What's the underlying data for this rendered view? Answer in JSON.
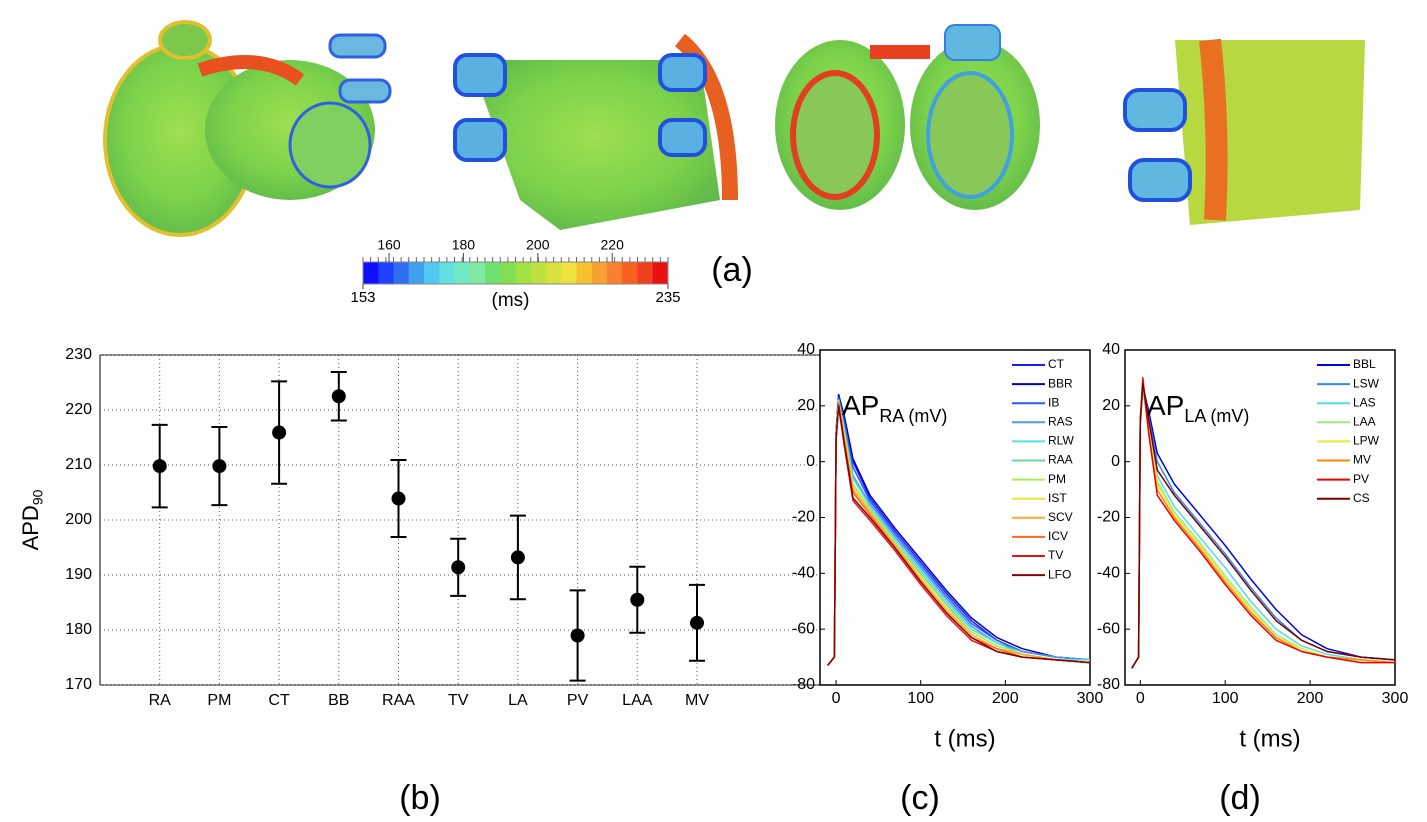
{
  "chart_data": [
    {
      "type": "colorbar",
      "unit_label": "(ms)",
      "panel_label": "(a)",
      "xlim": [
        153,
        235
      ],
      "xticks": [
        160,
        180,
        200,
        220
      ],
      "colors": [
        "#1010ff",
        "#2040ff",
        "#3070f0",
        "#40a0f0",
        "#50c8f0",
        "#60e0e0",
        "#70e8c0",
        "#80e8a0",
        "#70e070",
        "#80e050",
        "#a0e040",
        "#c0e040",
        "#d8e040",
        "#f0e040",
        "#f8c030",
        "#f8a030",
        "#f88030",
        "#f86020",
        "#f04020",
        "#e81010"
      ]
    },
    {
      "type": "errorbar",
      "ylabel": "APD",
      "ylabel_sub": "90",
      "panel_label": "(b)",
      "categories": [
        "RA",
        "PM",
        "CT",
        "BB",
        "RAA",
        "TV",
        "LA",
        "PV",
        "LAA",
        "MV"
      ],
      "values": [
        209.8,
        209.8,
        215.9,
        222.5,
        203.9,
        191.4,
        193.2,
        179.0,
        185.5,
        181.3
      ],
      "errors": [
        7.5,
        7.1,
        9.3,
        4.4,
        7.0,
        5.2,
        7.6,
        8.2,
        6.0,
        6.9
      ],
      "ylim": [
        170,
        230
      ],
      "yticks": [
        170,
        180,
        190,
        200,
        210,
        220,
        230
      ],
      "grid": true
    },
    {
      "type": "line",
      "annotation": "AP",
      "annotation_sub": "RA (mV)",
      "xlabel": "t (ms)",
      "panel_label": "(c)",
      "xlim": [
        -19,
        300
      ],
      "xticks": [
        0,
        100,
        200,
        300
      ],
      "ylim": [
        -80,
        40
      ],
      "yticks": [
        -80,
        -60,
        -40,
        -20,
        0,
        20,
        40
      ],
      "x": [
        -10,
        -2,
        0,
        3,
        10,
        20,
        40,
        70,
        100,
        130,
        160,
        190,
        220,
        260,
        300
      ],
      "series": [
        {
          "name": "CT",
          "color": "#1a1aff",
          "values": [
            -73,
            -70,
            10,
            24,
            15,
            0,
            -13,
            -25,
            -36,
            -47,
            -57,
            -64,
            -68,
            -70,
            -71
          ]
        },
        {
          "name": "BBR",
          "color": "#0000c8",
          "values": [
            -73,
            -70,
            11,
            24,
            16,
            1,
            -12,
            -24,
            -35,
            -46,
            -56,
            -63,
            -67,
            -70,
            -71
          ]
        },
        {
          "name": "IB",
          "color": "#2a5cf0",
          "values": [
            -73,
            -70,
            10,
            23,
            14,
            -2,
            -14,
            -26,
            -37,
            -48,
            -58,
            -64,
            -68,
            -70,
            -71
          ]
        },
        {
          "name": "RAS",
          "color": "#4a9cf0",
          "values": [
            -73,
            -70,
            9,
            22,
            12,
            -5,
            -15,
            -27,
            -38,
            -49,
            -59,
            -65,
            -68,
            -70,
            -71
          ]
        },
        {
          "name": "RLW",
          "color": "#55dede",
          "values": [
            -73,
            -70,
            9,
            22,
            11,
            -6,
            -16,
            -28,
            -39,
            -50,
            -60,
            -65,
            -69,
            -71,
            -71
          ]
        },
        {
          "name": "RAA",
          "color": "#66dd99",
          "values": [
            -73,
            -70,
            9,
            22,
            10,
            -8,
            -17,
            -29,
            -40,
            -51,
            -61,
            -66,
            -69,
            -71,
            -72
          ]
        },
        {
          "name": "PM",
          "color": "#aaee55",
          "values": [
            -73,
            -70,
            9,
            22,
            10,
            -8,
            -17,
            -29,
            -41,
            -52,
            -61,
            -66,
            -69,
            -71,
            -72
          ]
        },
        {
          "name": "IST",
          "color": "#e8e840",
          "values": [
            -73,
            -70,
            9,
            21,
            9,
            -9,
            -18,
            -30,
            -41,
            -52,
            -62,
            -67,
            -69,
            -71,
            -72
          ]
        },
        {
          "name": "SCV",
          "color": "#ffaa22",
          "values": [
            -73,
            -70,
            8,
            21,
            8,
            -10,
            -18,
            -30,
            -42,
            -53,
            -62,
            -67,
            -69,
            -71,
            -72
          ]
        },
        {
          "name": "ICV",
          "color": "#ff6622",
          "values": [
            -73,
            -70,
            8,
            21,
            7,
            -11,
            -19,
            -31,
            -43,
            -54,
            -63,
            -67,
            -70,
            -71,
            -72
          ]
        },
        {
          "name": "TV",
          "color": "#ee1111",
          "values": [
            -73,
            -70,
            8,
            20,
            5,
            -14,
            -21,
            -32,
            -44,
            -55,
            -64,
            -68,
            -70,
            -71,
            -72
          ]
        },
        {
          "name": "LFO",
          "color": "#880000",
          "values": [
            -73,
            -70,
            8,
            20,
            6,
            -13,
            -20,
            -31,
            -43,
            -54,
            -63,
            -68,
            -70,
            -71,
            -72
          ]
        }
      ]
    },
    {
      "type": "line",
      "annotation": "AP",
      "annotation_sub": "LA (mV)",
      "xlabel": "t (ms)",
      "panel_label": "(d)",
      "xlim": [
        -18,
        300
      ],
      "xticks": [
        0,
        100,
        200,
        300
      ],
      "ylim": [
        -80,
        40
      ],
      "yticks": [
        -80,
        -60,
        -40,
        -20,
        0,
        20,
        40
      ],
      "x": [
        -10,
        -2,
        0,
        3,
        10,
        20,
        40,
        70,
        100,
        130,
        160,
        190,
        220,
        260,
        300
      ],
      "series": [
        {
          "name": "BBL",
          "color": "#0000dd",
          "values": [
            -74,
            -70,
            15,
            27,
            18,
            3,
            -8,
            -19,
            -30,
            -42,
            -53,
            -62,
            -67,
            -70,
            -71
          ]
        },
        {
          "name": "LSW",
          "color": "#3388ee",
          "values": [
            -74,
            -70,
            14,
            27,
            16,
            0,
            -11,
            -22,
            -33,
            -45,
            -56,
            -64,
            -68,
            -70,
            -71
          ]
        },
        {
          "name": "LAS",
          "color": "#55dddd",
          "values": [
            -74,
            -70,
            13,
            26,
            12,
            -5,
            -16,
            -27,
            -38,
            -50,
            -60,
            -66,
            -69,
            -71,
            -72
          ]
        },
        {
          "name": "LAA",
          "color": "#99ee77",
          "values": [
            -74,
            -70,
            13,
            27,
            11,
            -7,
            -18,
            -29,
            -41,
            -52,
            -62,
            -67,
            -70,
            -71,
            -72
          ]
        },
        {
          "name": "LPW",
          "color": "#e8e833",
          "values": [
            -74,
            -70,
            14,
            28,
            11,
            -8,
            -19,
            -30,
            -42,
            -53,
            -63,
            -67,
            -70,
            -71,
            -72
          ]
        },
        {
          "name": "MV",
          "color": "#ff8800",
          "values": [
            -74,
            -70,
            14,
            28,
            10,
            -10,
            -20,
            -31,
            -43,
            -54,
            -63,
            -68,
            -70,
            -71,
            -72
          ]
        },
        {
          "name": "PV",
          "color": "#ee0000",
          "values": [
            -74,
            -70,
            15,
            30,
            10,
            -12,
            -21,
            -32,
            -44,
            -55,
            -64,
            -68,
            -70,
            -72,
            -72
          ]
        },
        {
          "name": "CS",
          "color": "#770000",
          "values": [
            -74,
            -70,
            14,
            28,
            15,
            -3,
            -12,
            -23,
            -34,
            -46,
            -57,
            -64,
            -68,
            -70,
            -71
          ]
        }
      ]
    }
  ]
}
